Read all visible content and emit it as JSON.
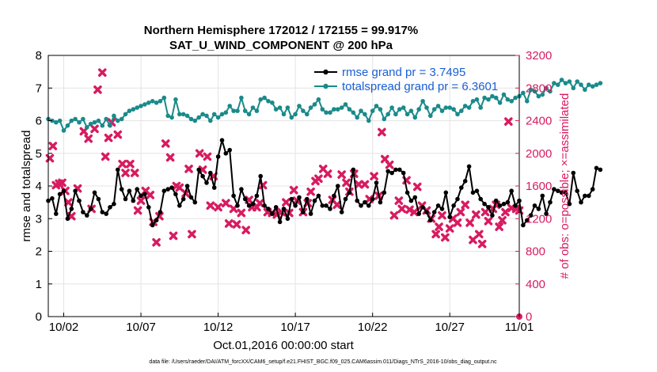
{
  "chart_data": {
    "type": "line",
    "title": "Northern Hemisphere 172012 / 172155 = 99.917%",
    "subtitle": "SAT_U_WIND_COMPONENT @ 200 hPa",
    "xlabel": "Oct.01,2016 00:00:00 start",
    "ylabel": "rmse and totalspread",
    "ylabel_right": "# of obs: o=possible; ×=assimilated",
    "footer": "data file: /Users/raeder/DAI/ATM_forcXX/CAM6_setup/f.e21.FHIST_BGC.f09_025.CAM6assim.011/Diags_NTrS_2016-10/obs_diag_output.nc",
    "xlim": [
      0.5,
      31
    ],
    "ylim": [
      0,
      8
    ],
    "ylim_right": [
      0,
      3200
    ],
    "x_ticks": [
      1.5,
      6.5,
      11.5,
      16.5,
      21.5,
      26.5,
      31
    ],
    "x_tick_labels": [
      "10/02",
      "10/07",
      "10/12",
      "10/17",
      "10/22",
      "10/27",
      "11/01"
    ],
    "y_ticks": [
      0,
      1,
      2,
      3,
      4,
      5,
      6,
      7,
      8
    ],
    "y_ticks_right": [
      0,
      400,
      800,
      1200,
      1600,
      2000,
      2400,
      2800,
      3200
    ],
    "grid": true,
    "legend_position": "top-right",
    "x_start": 0.5,
    "x_step": 0.25,
    "series": [
      {
        "name": "rmse grand pr = 3.7495",
        "axis": "left",
        "color": "#000000",
        "marker": "circle",
        "values": [
          3.55,
          3.62,
          3.15,
          3.75,
          3.85,
          3.0,
          3.3,
          3.85,
          3.55,
          3.2,
          3.1,
          3.3,
          3.8,
          3.6,
          3.2,
          3.15,
          3.35,
          3.45,
          4.5,
          3.9,
          3.6,
          3.85,
          3.55,
          3.9,
          3.7,
          3.75,
          3.35,
          2.8,
          2.95,
          3.2,
          3.85,
          3.9,
          3.95,
          3.75,
          3.4,
          3.6,
          4.0,
          3.65,
          3.5,
          4.5,
          4.3,
          4.1,
          4.4,
          3.95,
          4.9,
          5.4,
          5.0,
          5.1,
          3.7,
          3.4,
          3.9,
          3.6,
          3.4,
          3.45,
          3.7,
          4.3,
          3.4,
          3.3,
          3.15,
          3.35,
          2.9,
          3.3,
          3.0,
          3.6,
          3.4,
          3.65,
          3.2,
          3.6,
          3.15,
          3.55,
          3.7,
          3.4,
          3.4,
          3.3,
          3.7,
          4.0,
          3.2,
          3.6,
          3.8,
          4.5,
          3.55,
          3.4,
          3.5,
          3.4,
          3.6,
          4.1,
          3.5,
          3.8,
          4.45,
          4.4,
          4.5,
          4.5,
          4.4,
          3.8,
          3.55,
          3.65,
          3.15,
          3.35,
          3.2,
          2.95,
          3.2,
          3.4,
          3.3,
          3.8,
          3.05,
          3.4,
          3.6,
          3.95,
          4.15,
          4.6,
          3.8,
          3.85,
          3.6,
          3.45,
          3.35,
          3.1,
          3.55,
          3.4,
          3.45,
          3.5,
          3.85,
          3.4,
          3.55,
          2.8,
          2.95,
          3.1,
          3.4,
          3.3,
          3.7,
          3.15,
          3.5,
          3.9,
          3.85,
          3.8,
          3.8,
          3.45,
          4.4,
          3.85,
          3.5,
          3.7,
          3.7,
          3.9,
          4.55,
          4.5
        ]
      },
      {
        "name": "totalspread grand pr = 6.3601",
        "axis": "left",
        "color": "#1a8a8a",
        "marker": "circle",
        "values": [
          6.05,
          6.0,
          5.95,
          6.0,
          5.7,
          5.85,
          6.0,
          6.05,
          5.95,
          6.05,
          5.8,
          5.9,
          5.95,
          6.0,
          5.85,
          6.05,
          5.85,
          6.15,
          6.0,
          6.05,
          6.2,
          6.3,
          6.35,
          6.4,
          6.45,
          6.5,
          6.55,
          6.6,
          6.55,
          6.6,
          6.7,
          6.15,
          6.1,
          6.65,
          6.2,
          6.2,
          6.15,
          6.05,
          6.0,
          6.1,
          6.2,
          6.15,
          6.0,
          6.2,
          6.1,
          6.2,
          6.25,
          6.45,
          6.3,
          6.3,
          6.7,
          6.3,
          6.2,
          6.4,
          6.3,
          6.65,
          6.7,
          6.6,
          6.55,
          6.35,
          6.4,
          6.2,
          6.4,
          6.1,
          6.2,
          6.45,
          6.3,
          6.2,
          6.4,
          6.5,
          6.65,
          6.35,
          6.25,
          6.25,
          6.35,
          6.35,
          6.4,
          6.5,
          6.35,
          6.25,
          6.1,
          6.3,
          6.2,
          6.0,
          6.3,
          6.45,
          6.35,
          6.05,
          6.2,
          6.4,
          6.2,
          6.35,
          6.4,
          6.2,
          6.3,
          6.1,
          6.35,
          6.6,
          6.4,
          6.15,
          6.35,
          6.45,
          6.3,
          6.4,
          6.4,
          6.35,
          6.2,
          6.3,
          6.45,
          6.4,
          6.6,
          6.65,
          6.4,
          6.7,
          6.65,
          6.75,
          6.7,
          6.55,
          6.8,
          6.65,
          6.6,
          6.7,
          6.75,
          6.85,
          6.6,
          6.95,
          6.9,
          6.75,
          6.8,
          7.0,
          6.9,
          7.15,
          7.1,
          7.25,
          7.15,
          7.2,
          7.0,
          7.2,
          7.1,
          6.95,
          7.1,
          7.05,
          7.1,
          7.15
        ]
      }
    ],
    "obs_assimilated": {
      "name": "# assimilated",
      "axis": "right",
      "color": "#d81b60",
      "marker": "x",
      "points": [
        [
          0.6,
          1940
        ],
        [
          0.8,
          2090
        ],
        [
          1.0,
          1610
        ],
        [
          1.2,
          1630
        ],
        [
          1.4,
          1640
        ],
        [
          1.6,
          1540
        ],
        [
          1.8,
          1400
        ],
        [
          2.0,
          1230
        ],
        [
          2.4,
          1570
        ],
        [
          2.8,
          2270
        ],
        [
          3.1,
          2180
        ],
        [
          3.3,
          1320
        ],
        [
          3.5,
          2300
        ],
        [
          3.7,
          2780
        ],
        [
          4.0,
          2990
        ],
        [
          4.2,
          1960
        ],
        [
          4.4,
          2190
        ],
        [
          4.6,
          2380
        ],
        [
          5.0,
          2230
        ],
        [
          5.3,
          1870
        ],
        [
          5.5,
          1760
        ],
        [
          5.8,
          1870
        ],
        [
          6.1,
          1760
        ],
        [
          6.3,
          1300
        ],
        [
          6.5,
          1420
        ],
        [
          6.8,
          1540
        ],
        [
          7.1,
          1490
        ],
        [
          7.3,
          1160
        ],
        [
          7.5,
          910
        ],
        [
          7.7,
          1230
        ],
        [
          8.1,
          2120
        ],
        [
          8.4,
          1950
        ],
        [
          8.6,
          990
        ],
        [
          8.8,
          1600
        ],
        [
          9.0,
          1580
        ],
        [
          9.4,
          1510
        ],
        [
          9.6,
          1810
        ],
        [
          9.8,
          1010
        ],
        [
          10.3,
          2000
        ],
        [
          10.5,
          1800
        ],
        [
          10.8,
          1960
        ],
        [
          11.0,
          1360
        ],
        [
          11.2,
          1720
        ],
        [
          11.5,
          1340
        ],
        [
          12.0,
          1390
        ],
        [
          12.2,
          1140
        ],
        [
          12.5,
          1320
        ],
        [
          12.7,
          1130
        ],
        [
          13.0,
          1270
        ],
        [
          13.3,
          1060
        ],
        [
          13.5,
          1430
        ],
        [
          13.7,
          1340
        ],
        [
          14.0,
          1340
        ],
        [
          14.2,
          1390
        ],
        [
          14.4,
          1610
        ],
        [
          14.7,
          1280
        ],
        [
          15.0,
          1270
        ],
        [
          15.3,
          1250
        ],
        [
          15.6,
          1280
        ],
        [
          15.9,
          1400
        ],
        [
          16.1,
          1270
        ],
        [
          16.4,
          1550
        ],
        [
          16.6,
          1420
        ],
        [
          17.0,
          1280
        ],
        [
          17.3,
          1390
        ],
        [
          17.5,
          1530
        ],
        [
          17.8,
          1660
        ],
        [
          18.0,
          1690
        ],
        [
          18.3,
          1810
        ],
        [
          18.6,
          1750
        ],
        [
          18.9,
          1430
        ],
        [
          19.2,
          1370
        ],
        [
          19.5,
          1740
        ],
        [
          19.8,
          1640
        ],
        [
          20.0,
          1530
        ],
        [
          20.3,
          1750
        ],
        [
          20.6,
          1620
        ],
        [
          21.0,
          1620
        ],
        [
          21.3,
          1440
        ],
        [
          21.6,
          1720
        ],
        [
          21.9,
          1480
        ],
        [
          22.1,
          2260
        ],
        [
          22.3,
          1930
        ],
        [
          22.6,
          1860
        ],
        [
          22.9,
          1240
        ],
        [
          23.2,
          1420
        ],
        [
          23.4,
          1320
        ],
        [
          23.7,
          1670
        ],
        [
          23.9,
          1310
        ],
        [
          24.2,
          1280
        ],
        [
          24.4,
          1590
        ],
        [
          24.7,
          1360
        ],
        [
          25.0,
          1300
        ],
        [
          25.3,
          1200
        ],
        [
          25.6,
          1010
        ],
        [
          25.8,
          1100
        ],
        [
          26.0,
          1240
        ],
        [
          26.2,
          970
        ],
        [
          26.5,
          1080
        ],
        [
          26.7,
          1200
        ],
        [
          27.0,
          1150
        ],
        [
          27.2,
          1280
        ],
        [
          27.5,
          1370
        ],
        [
          27.8,
          1150
        ],
        [
          28.0,
          940
        ],
        [
          28.2,
          1250
        ],
        [
          28.4,
          1010
        ],
        [
          28.6,
          890
        ],
        [
          28.8,
          1280
        ],
        [
          29.0,
          1170
        ],
        [
          29.3,
          1320
        ],
        [
          29.5,
          1370
        ],
        [
          29.7,
          1100
        ],
        [
          29.9,
          1180
        ],
        [
          30.1,
          1280
        ],
        [
          30.3,
          2390
        ],
        [
          30.5,
          1330
        ],
        [
          30.8,
          1320
        ],
        [
          31.0,
          1300
        ]
      ]
    },
    "obs_possible_at_end": {
      "x": 31,
      "y": 0,
      "color": "#d81b60"
    }
  }
}
